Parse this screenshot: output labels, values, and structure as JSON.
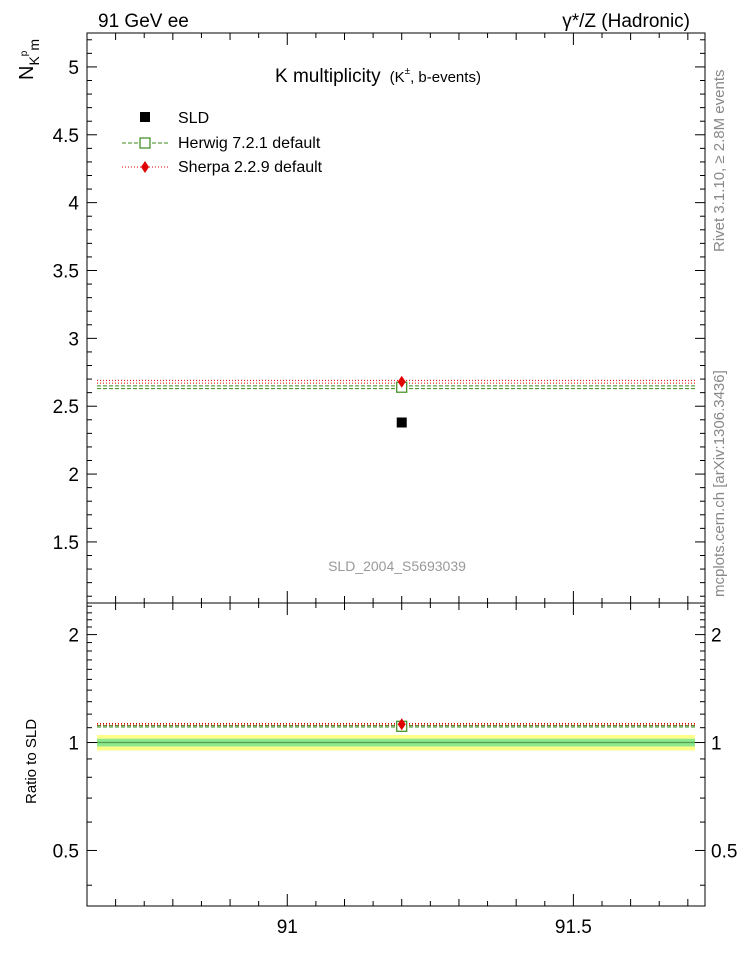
{
  "header": {
    "energy": "91 GeV ee",
    "process": "γ*/Z (Hadronic)"
  },
  "side_text": {
    "rivet": "Rivet 3.1.10, ≥ 2.8M events",
    "source": "mcplots.cern.ch [arXiv:1306.3436]"
  },
  "chart_data": [
    {
      "type": "scatter",
      "panel": "main",
      "title": {
        "main": "K multiplicity",
        "detail_prefix": "(K",
        "detail_sup": "±",
        "detail_suffix": ", b-events)"
      },
      "ylabel": {
        "base": "N",
        "sub": "K",
        "subsup": "p",
        "subsub": "m"
      },
      "xlim": [
        90.65,
        91.73
      ],
      "ylim": [
        1.05,
        5.25
      ],
      "yticks": [
        "1.5",
        "2",
        "2.5",
        "3",
        "3.5",
        "4",
        "4.5",
        "5"
      ],
      "ytick_values": [
        1.5,
        2,
        2.5,
        3,
        3.5,
        4,
        4.5,
        5
      ],
      "watermark": "SLD_2004_S5693039",
      "legend_position": "top-left",
      "legend": [
        {
          "label": "SLD",
          "marker": "square-filled",
          "color": "#000000"
        },
        {
          "label": "Herwig 7.2.1 default",
          "marker": "square-open",
          "color": "#3a8a1a",
          "line": "dashed"
        },
        {
          "label": "Sherpa 2.2.9 default",
          "marker": "diamond",
          "color": "#e00000",
          "line": "dotted"
        }
      ],
      "series": [
        {
          "name": "SLD",
          "x": [
            91.2
          ],
          "y": [
            2.38
          ]
        },
        {
          "name": "Herwig 7.2.1 default",
          "x": [
            91.2
          ],
          "y": [
            2.64
          ],
          "band": [
            2.63,
            2.65
          ]
        },
        {
          "name": "Sherpa 2.2.9 default",
          "x": [
            91.2
          ],
          "y": [
            2.68
          ],
          "band": [
            2.67,
            2.69
          ]
        }
      ]
    },
    {
      "type": "scatter",
      "panel": "ratio",
      "ylabel": "Ratio to SLD",
      "xlim": [
        90.65,
        91.73
      ],
      "ylim": [
        0.35,
        2.45
      ],
      "scale": "log",
      "yticks": [
        "0.5",
        "1",
        "2"
      ],
      "ytick_values": [
        0.5,
        1,
        2
      ],
      "xticks": [
        "91",
        "91.5"
      ],
      "xtick_values": [
        91,
        91.5
      ],
      "uncertainty_band": {
        "inner": [
          0.975,
          1.025
        ],
        "outer": [
          0.95,
          1.05
        ]
      },
      "series": [
        {
          "name": "Herwig 7.2.1 default",
          "x": [
            91.2
          ],
          "y": [
            1.11
          ],
          "band": [
            1.105,
            1.115
          ]
        },
        {
          "name": "Sherpa 2.2.9 default",
          "x": [
            91.2
          ],
          "y": [
            1.125
          ],
          "band": [
            1.12,
            1.13
          ]
        }
      ]
    }
  ]
}
